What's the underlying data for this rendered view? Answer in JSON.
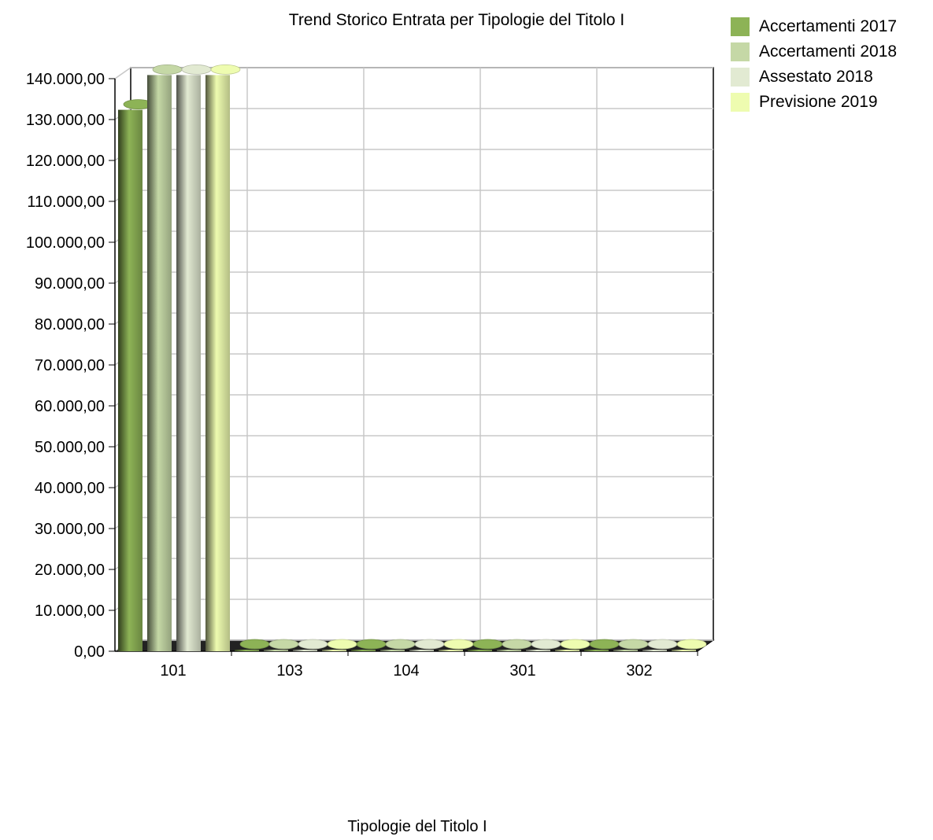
{
  "chart_data": {
    "type": "bar",
    "title": "Trend Storico Entrata per Tipologie del Titolo I",
    "xlabel": "Tipologie del Titolo I",
    "ylabel": "",
    "categories": [
      "101",
      "103",
      "104",
      "301",
      "302"
    ],
    "series": [
      {
        "name": "Accertamenti 2017",
        "values": [
          132000,
          0,
          0,
          0,
          0
        ],
        "color": "#8db356"
      },
      {
        "name": "Accertamenti 2018",
        "values": [
          140500,
          0,
          0,
          0,
          0
        ],
        "color": "#c5d8a6"
      },
      {
        "name": "Assestato 2018",
        "values": [
          140500,
          0,
          0,
          0,
          0
        ],
        "color": "#e2ead2"
      },
      {
        "name": "Previsione 2019",
        "values": [
          140500,
          0,
          0,
          0,
          0
        ],
        "color": "#eefcb0"
      }
    ],
    "ylim": [
      0,
      140000
    ],
    "yticks": [
      "0,00",
      "10.000,00",
      "20.000,00",
      "30.000,00",
      "40.000,00",
      "50.000,00",
      "60.000,00",
      "70.000,00",
      "80.000,00",
      "90.000,00",
      "100.000,00",
      "110.000,00",
      "120.000,00",
      "130.000,00",
      "140.000,00"
    ],
    "grid": true,
    "legend_position": "top-right"
  }
}
